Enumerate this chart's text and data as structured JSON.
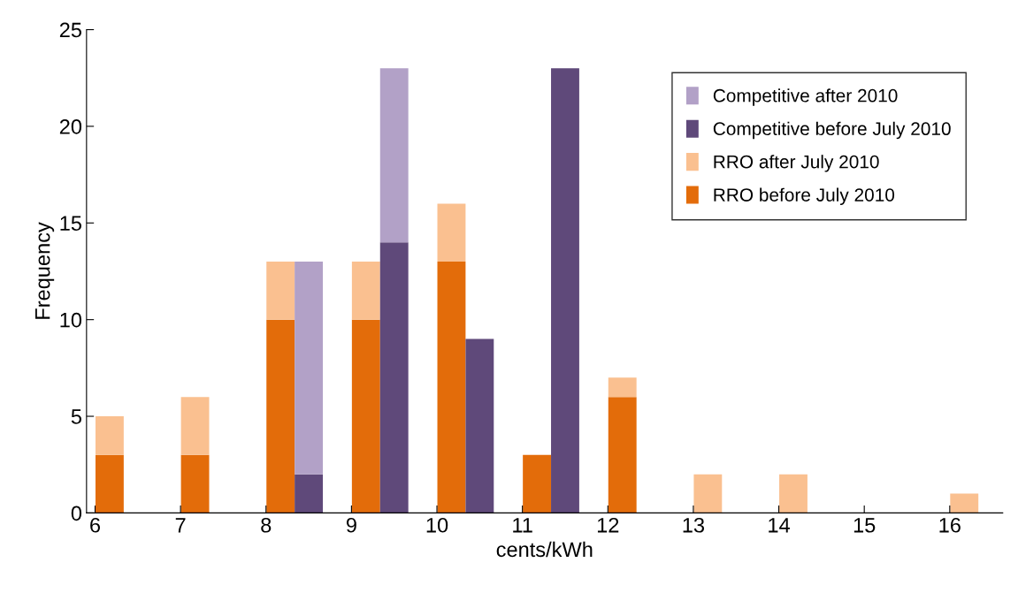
{
  "chart_data": {
    "type": "bar",
    "stacked": true,
    "xlabel": "cents/kWh",
    "ylabel": "Frequency",
    "xlim": [
      5.9,
      16.62
    ],
    "xticks": [
      6,
      7,
      8,
      9,
      10,
      11,
      12,
      13,
      14,
      15,
      16
    ],
    "ylim": [
      0,
      25
    ],
    "yticks": [
      0,
      5,
      10,
      15,
      20,
      25
    ],
    "grid": false,
    "legend": "top right",
    "x": [
      6.17,
      7.17,
      8.17,
      8.5,
      9.17,
      9.5,
      10.17,
      10.5,
      11.17,
      11.5,
      12.17,
      13.17,
      14.17,
      15.17,
      16.17
    ],
    "series": [
      {
        "name": "RRO before July 2010",
        "color": "#e36c0a",
        "values": [
          3,
          3,
          10,
          null,
          10,
          null,
          13,
          null,
          3,
          null,
          6,
          0,
          0,
          0,
          0
        ]
      },
      {
        "name": "RRO after July 2010",
        "color": "#fac090",
        "values": [
          2,
          3,
          3,
          null,
          3,
          null,
          3,
          null,
          0,
          null,
          1,
          2,
          2,
          0,
          1
        ]
      },
      {
        "name": "Competitive before July 2010",
        "color": "#5f497a",
        "values": [
          null,
          null,
          null,
          2,
          null,
          14,
          null,
          9,
          null,
          23,
          null,
          null,
          null,
          null,
          null
        ]
      },
      {
        "name": "Competitive after 2010",
        "color": "#b2a1c7",
        "values": [
          null,
          null,
          null,
          11,
          null,
          9,
          null,
          0,
          null,
          0,
          null,
          null,
          null,
          null,
          null
        ]
      }
    ]
  }
}
